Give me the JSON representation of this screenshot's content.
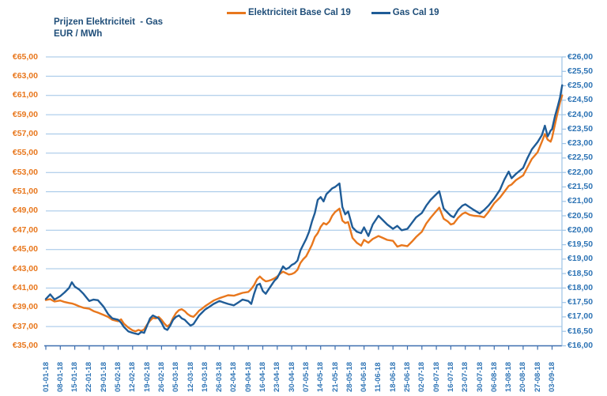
{
  "title": {
    "line1": "Prijzen Elektriciteit  - Gas",
    "line2": "EUR / MWh"
  },
  "legend": {
    "items": [
      {
        "label": "Elektriciteit Base Cal 19",
        "color": "#E8771D"
      },
      {
        "label": "Gas Cal 19",
        "color": "#1F5C97"
      }
    ]
  },
  "colors": {
    "elektriciteit_line": "#E8771D",
    "gas_line": "#1F5C97",
    "title_text": "#1F4E79",
    "left_axis_text": "#E8771D",
    "right_axis_text": "#2E74B5",
    "x_axis_text": "#2E74B5",
    "gridline": "#9DC3E6",
    "axis_line": "#3E6FAF"
  },
  "chart_data": {
    "type": "line",
    "title": "Prijzen Elektriciteit - Gas",
    "ylabel_unit": "EUR / MWh",
    "grid": true,
    "legend_position": "top",
    "left_axis": {
      "series": "Elektriciteit Base Cal 19",
      "min": 35,
      "max": 65,
      "step": 2,
      "labels": [
        "€65,00",
        "€63,00",
        "€61,00",
        "€59,00",
        "€57,00",
        "€55,00",
        "€53,00",
        "€51,00",
        "€49,00",
        "€47,00",
        "€45,00",
        "€43,00",
        "€41,00",
        "€39,00",
        "€37,00",
        "€35,00"
      ]
    },
    "right_axis": {
      "series": "Gas Cal 19",
      "min": 16,
      "max": 26,
      "step": 0.5,
      "labels": [
        "€26,00",
        "€25,50",
        "€25,00",
        "€24,50",
        "€24,00",
        "€23,50",
        "€23,00",
        "€22,50",
        "€22,00",
        "€21,50",
        "€21,00",
        "€20,50",
        "€20,00",
        "€19,50",
        "€19,00",
        "€18,50",
        "€18,00",
        "€17,50",
        "€17,00",
        "€16,50",
        "€16,00"
      ]
    },
    "x_axis": {
      "tick_labels": [
        "01-01-18",
        "08-01-18",
        "15-01-18",
        "22-01-18",
        "29-01-18",
        "05-02-18",
        "12-02-18",
        "19-02-18",
        "26-02-18",
        "05-03-18",
        "12-03-18",
        "19-03-18",
        "26-03-18",
        "02-04-18",
        "09-04-18",
        "16-04-18",
        "23-04-18",
        "30-04-18",
        "07-05-18",
        "14-05-18",
        "21-05-18",
        "28-05-18",
        "04-06-18",
        "11-06-18",
        "18-06-18",
        "25-06-18",
        "02-07-18",
        "09-07-18",
        "16-07-18",
        "23-07-18",
        "30-07-18",
        "06-08-18",
        "13-08-18",
        "20-08-18",
        "27-08-18",
        "03-09-18"
      ],
      "note": "weekly ticks; data sampled through 05-09-18"
    },
    "t_weeks": [
      0,
      0.3,
      0.6,
      1,
      1.3,
      1.6,
      1.8,
      2,
      2.3,
      2.6,
      3,
      3.3,
      3.6,
      4,
      4.3,
      4.6,
      5,
      5.2,
      5.4,
      5.7,
      6,
      6.2,
      6.4,
      6.6,
      6.8,
      7,
      7.2,
      7.4,
      7.6,
      7.8,
      8,
      8.2,
      8.4,
      8.6,
      8.8,
      9,
      9.2,
      9.4,
      9.6,
      9.8,
      10,
      10.2,
      10.4,
      10.6,
      10.8,
      11,
      11.3,
      11.6,
      12,
      12.3,
      12.6,
      13,
      13.3,
      13.6,
      14,
      14.2,
      14.4,
      14.6,
      14.8,
      15,
      15.2,
      15.4,
      15.6,
      15.8,
      16,
      16.2,
      16.4,
      16.6,
      16.8,
      17,
      17.2,
      17.4,
      17.6,
      17.8,
      18,
      18.2,
      18.4,
      18.6,
      18.8,
      19,
      19.2,
      19.4,
      19.6,
      19.8,
      20,
      20.3,
      20.5,
      20.7,
      20.9,
      21.2,
      21.5,
      21.8,
      22,
      22.3,
      22.6,
      23,
      23.3,
      23.6,
      24,
      24.3,
      24.6,
      25,
      25.3,
      25.6,
      26,
      26.3,
      26.6,
      27,
      27.2,
      27.5,
      27.8,
      28,
      28.2,
      28.5,
      28.8,
      29,
      29.3,
      29.6,
      30,
      30.3,
      30.6,
      31,
      31.4,
      31.7,
      32,
      32.2,
      32.5,
      33,
      33.3,
      33.6,
      34,
      34.3,
      34.5,
      34.7,
      34.9,
      35,
      35.2,
      35.4,
      35.55,
      35.7
    ],
    "series": [
      {
        "name": "Elektriciteit Base Cal 19",
        "axis": "left",
        "color": "#E8771D",
        "values": [
          39.75,
          39.85,
          39.6,
          39.7,
          39.55,
          39.45,
          39.4,
          39.3,
          39.1,
          38.95,
          38.85,
          38.6,
          38.45,
          38.2,
          38,
          37.7,
          37.55,
          37.75,
          37.3,
          36.9,
          36.6,
          36.5,
          36.65,
          36.55,
          36.7,
          37.2,
          37.6,
          37.9,
          37.85,
          38,
          37.7,
          37.3,
          37,
          37.25,
          37.9,
          38.4,
          38.7,
          38.8,
          38.6,
          38.3,
          38.1,
          38,
          38.3,
          38.65,
          38.85,
          39.1,
          39.4,
          39.7,
          39.95,
          40.1,
          40.25,
          40.2,
          40.35,
          40.5,
          40.6,
          40.9,
          41.3,
          41.9,
          42.2,
          41.9,
          41.7,
          41.75,
          41.85,
          42,
          42.2,
          42.5,
          42.7,
          42.55,
          42.4,
          42.45,
          42.6,
          42.9,
          43.6,
          44,
          44.3,
          44.9,
          45.5,
          46.3,
          46.7,
          47.35,
          47.75,
          47.6,
          47.9,
          48.5,
          48.9,
          49.25,
          48,
          47.75,
          47.85,
          46.2,
          45.7,
          45.4,
          46,
          45.7,
          46.1,
          46.4,
          46.2,
          46,
          45.9,
          45.3,
          45.45,
          45.35,
          45.8,
          46.3,
          46.85,
          47.7,
          48.3,
          49,
          49.35,
          48.2,
          47.9,
          47.6,
          47.7,
          48.3,
          48.7,
          48.85,
          48.6,
          48.5,
          48.45,
          48.35,
          48.9,
          49.8,
          50.4,
          51,
          51.6,
          51.75,
          52.2,
          52.7,
          53.55,
          54.4,
          55.1,
          56.2,
          57,
          56.4,
          56.2,
          56.6,
          58,
          59.3,
          60.3,
          61
        ]
      },
      {
        "name": "Gas Cal 19",
        "axis": "right",
        "color": "#1F5C97",
        "values": [
          17.62,
          17.78,
          17.6,
          17.72,
          17.85,
          18,
          18.2,
          18.05,
          17.95,
          17.8,
          17.55,
          17.6,
          17.58,
          17.35,
          17.1,
          16.95,
          16.9,
          16.8,
          16.65,
          16.5,
          16.45,
          16.42,
          16.4,
          16.48,
          16.45,
          16.7,
          16.95,
          17.05,
          17,
          16.95,
          16.8,
          16.6,
          16.55,
          16.7,
          16.9,
          17,
          17.05,
          16.95,
          16.9,
          16.8,
          16.7,
          16.75,
          16.9,
          17.05,
          17.15,
          17.25,
          17.35,
          17.45,
          17.55,
          17.5,
          17.45,
          17.4,
          17.5,
          17.6,
          17.55,
          17.45,
          17.8,
          18.1,
          18.15,
          17.9,
          17.8,
          17.95,
          18.1,
          18.25,
          18.35,
          18.55,
          18.75,
          18.65,
          18.7,
          18.8,
          18.85,
          18.95,
          19.3,
          19.5,
          19.7,
          19.95,
          20.3,
          20.6,
          21.05,
          21.15,
          21,
          21.25,
          21.35,
          21.45,
          21.5,
          21.62,
          20.8,
          20.55,
          20.65,
          20.1,
          19.95,
          19.9,
          20.1,
          19.8,
          20.2,
          20.5,
          20.35,
          20.2,
          20.05,
          20.15,
          20,
          20.05,
          20.25,
          20.45,
          20.6,
          20.85,
          21.05,
          21.25,
          21.35,
          20.75,
          20.6,
          20.5,
          20.45,
          20.7,
          20.85,
          20.9,
          20.8,
          20.7,
          20.58,
          20.7,
          20.85,
          21.1,
          21.4,
          21.75,
          22.03,
          21.8,
          21.95,
          22.16,
          22.5,
          22.8,
          23.05,
          23.3,
          23.62,
          23.25,
          23.45,
          23.5,
          23.95,
          24.3,
          24.6,
          25.02
        ]
      }
    ]
  }
}
